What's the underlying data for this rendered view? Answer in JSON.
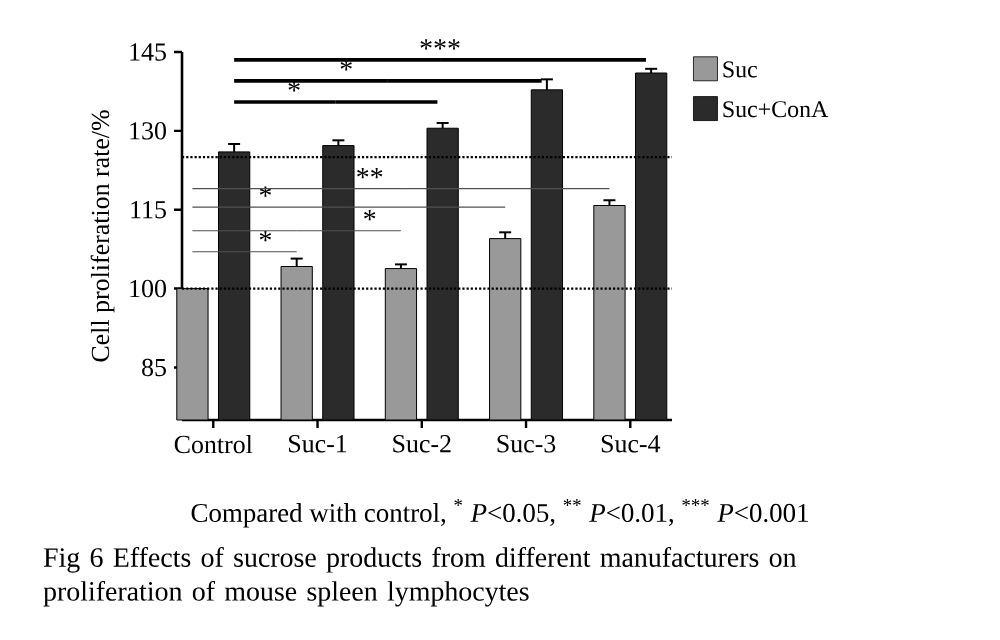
{
  "chart_data": {
    "type": "bar",
    "ylabel": "Cell proliferation rate/%",
    "categories": [
      "Control",
      "Suc-1",
      "Suc-2",
      "Suc-3",
      "Suc-4"
    ],
    "series": [
      {
        "name": "Suc",
        "color": "#999999",
        "values": [
          100,
          104.2,
          103.8,
          109.5,
          115.8
        ],
        "errors": [
          null,
          1.5,
          0.8,
          1.2,
          1.0
        ]
      },
      {
        "name": "Suc+ConA",
        "color": "#2b2b2b",
        "values": [
          126,
          127.2,
          130.5,
          137.8,
          141
        ],
        "errors": [
          1.5,
          1.0,
          1.0,
          2.0,
          0.8
        ]
      }
    ],
    "ylim": [
      75,
      145
    ],
    "yticks": [
      85,
      100,
      115,
      130,
      145
    ],
    "ref_lines": [
      {
        "axis": "y",
        "value": 100,
        "line_style": "dotted",
        "color": "#000000"
      },
      {
        "axis": "y",
        "value": 125,
        "line_style": "dotted",
        "color": "#000000"
      }
    ],
    "legend": "top right",
    "grid": false,
    "annotations": [
      "*",
      "*",
      "*",
      "**",
      "*",
      "*",
      "***",
      "Compared with control, $^{*}$ *P*<0.05, $^{**}$ *P*<0.01, $^{***}$ *P*<0.001",
      "Fig 6  Effects of sucrose products from different manufacturers on proliferation of mouse spleen lymphocytes"
    ]
  }
}
